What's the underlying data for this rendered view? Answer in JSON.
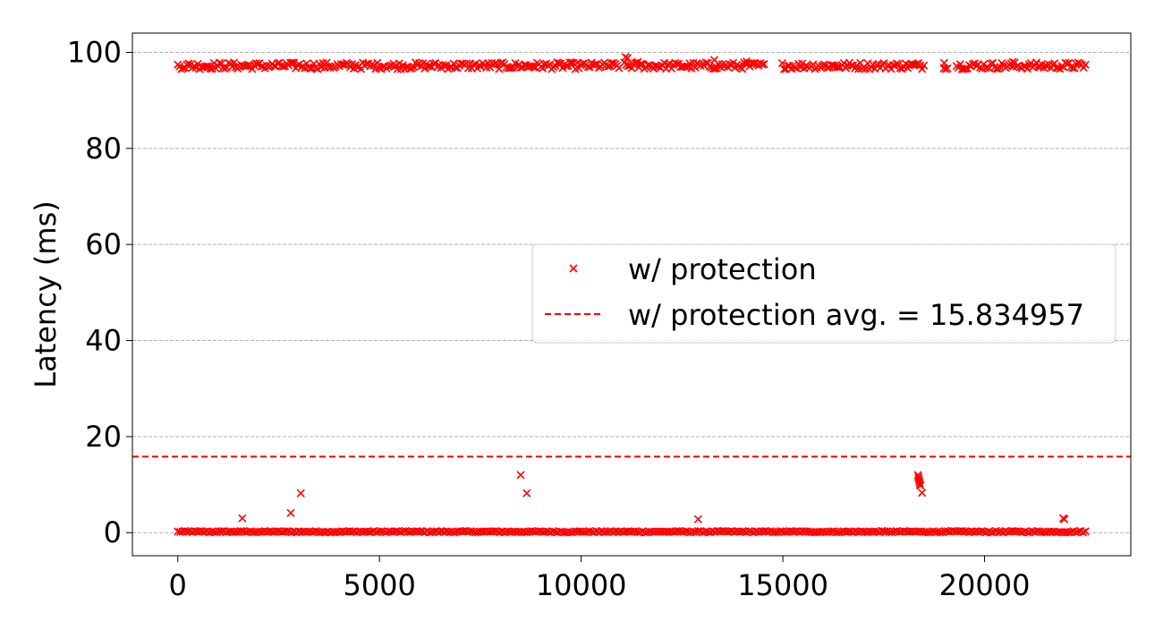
{
  "chart_data": {
    "type": "scatter",
    "title": "",
    "xlabel": "",
    "ylabel": "Latency (ms)",
    "xlim": [
      -1125,
      23625
    ],
    "ylim": [
      -4.8,
      104
    ],
    "x_ticks": [
      0,
      5000,
      10000,
      15000,
      20000
    ],
    "x_tick_labels": [
      "0",
      "5000",
      "10000",
      "15000",
      "20000"
    ],
    "y_ticks": [
      0,
      20,
      40,
      60,
      80,
      100
    ],
    "y_tick_labels": [
      "0",
      "20",
      "40",
      "60",
      "80",
      "100"
    ],
    "grid": "y-dashed",
    "legend_position": "center-right",
    "series": [
      {
        "name": "w/ protection",
        "marker": "x",
        "color": "#ff0000",
        "baseline_cluster": {
          "x_range": [
            0,
            22500
          ],
          "y": 0.2
        },
        "high_cluster": {
          "x_range": [
            0,
            22500
          ],
          "y_range": [
            96,
            98
          ],
          "gaps": [
            [
              10950,
              11050
            ],
            [
              14550,
              14950
            ],
            [
              18500,
              18950
            ],
            [
              19100,
              19300
            ]
          ]
        },
        "points": [
          [
            1600,
            3
          ],
          [
            2800,
            4.1
          ],
          [
            3050,
            8.2
          ],
          [
            8500,
            12
          ],
          [
            8650,
            8.2
          ],
          [
            12900,
            2.8
          ],
          [
            18350,
            12
          ],
          [
            18360,
            11.6
          ],
          [
            18370,
            11.2
          ],
          [
            18380,
            10.8
          ],
          [
            18390,
            10.4
          ],
          [
            18400,
            10
          ],
          [
            18410,
            9.8
          ],
          [
            18450,
            8.3
          ],
          [
            21950,
            3
          ],
          [
            21980,
            2.8
          ],
          [
            11100,
            99
          ],
          [
            11150,
            98.8
          ],
          [
            11400,
            98
          ],
          [
            13300,
            98.4
          ],
          [
            14100,
            98.1
          ],
          [
            19000,
            97.8
          ],
          [
            20700,
            98
          ]
        ]
      },
      {
        "name": "w/ protection avg. = 15.834957",
        "type": "hline",
        "value": 15.834957,
        "color": "#ff0000",
        "dash": "dashed"
      }
    ]
  }
}
